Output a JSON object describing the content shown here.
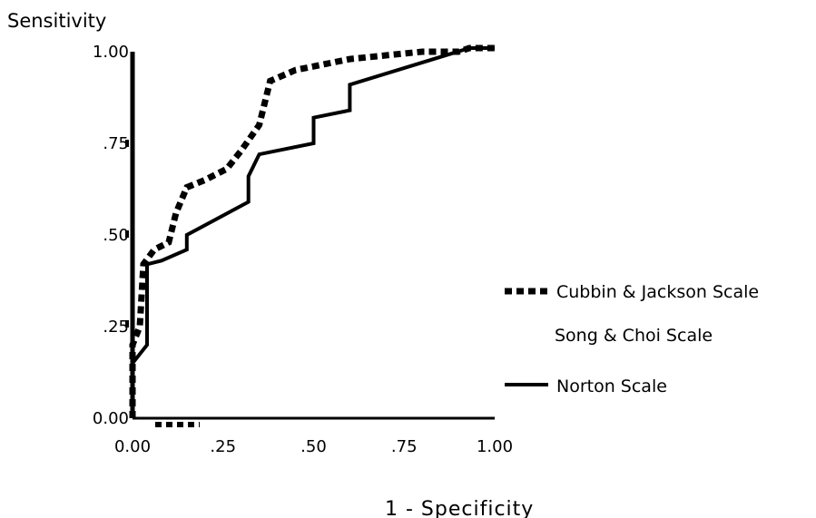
{
  "chart_data": {
    "type": "line",
    "title": "",
    "xlabel": "1 - Specificity",
    "ylabel": "Sensitivity",
    "xlim": [
      0,
      1
    ],
    "ylim": [
      0,
      1
    ],
    "x_ticks": [
      "0.00",
      ".25",
      ".50",
      ".75",
      "1.00"
    ],
    "y_ticks": [
      "0.00",
      ".25",
      ".50",
      ".75",
      "1.00"
    ],
    "legend_position": "right",
    "series": [
      {
        "name": "Cubbin & Jackson Scale",
        "style": "dotted",
        "points": [
          [
            0,
            0
          ],
          [
            0,
            0.2
          ],
          [
            0.02,
            0.25
          ],
          [
            0.03,
            0.42
          ],
          [
            0.06,
            0.46
          ],
          [
            0.1,
            0.48
          ],
          [
            0.12,
            0.56
          ],
          [
            0.15,
            0.63
          ],
          [
            0.2,
            0.65
          ],
          [
            0.26,
            0.68
          ],
          [
            0.3,
            0.73
          ],
          [
            0.35,
            0.8
          ],
          [
            0.38,
            0.92
          ],
          [
            0.45,
            0.95
          ],
          [
            0.5,
            0.96
          ],
          [
            0.6,
            0.98
          ],
          [
            0.7,
            0.99
          ],
          [
            0.8,
            1.0
          ],
          [
            0.9,
            1.0
          ],
          [
            0.93,
            1.01
          ],
          [
            1.0,
            1.01
          ]
        ]
      },
      {
        "name": "Song & Choi Scale",
        "style": "none",
        "points": []
      },
      {
        "name": "Norton Scale",
        "style": "solid",
        "points": [
          [
            0,
            0
          ],
          [
            0,
            0.15
          ],
          [
            0.04,
            0.2
          ],
          [
            0.04,
            0.42
          ],
          [
            0.08,
            0.43
          ],
          [
            0.15,
            0.46
          ],
          [
            0.15,
            0.5
          ],
          [
            0.32,
            0.59
          ],
          [
            0.32,
            0.66
          ],
          [
            0.35,
            0.72
          ],
          [
            0.5,
            0.75
          ],
          [
            0.5,
            0.82
          ],
          [
            0.6,
            0.84
          ],
          [
            0.6,
            0.91
          ],
          [
            0.93,
            1.01
          ],
          [
            1.0,
            1.01
          ]
        ]
      }
    ]
  }
}
